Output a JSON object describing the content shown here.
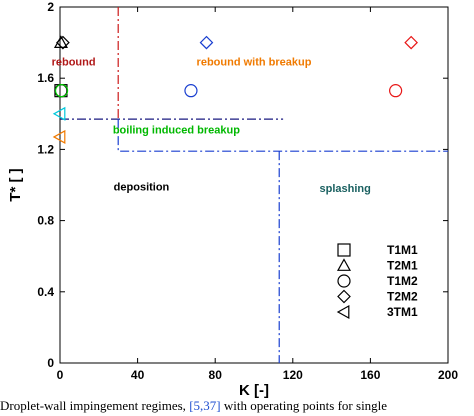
{
  "chart_data": {
    "type": "scatter",
    "xlabel": "K [-]",
    "ylabel": "T* [ ]",
    "xlim": [
      0,
      200
    ],
    "ylim": [
      0,
      2
    ],
    "xticks": [
      0,
      40,
      80,
      120,
      160,
      200
    ],
    "yticks": [
      0,
      0.4,
      0.8,
      1.2,
      1.6,
      2
    ],
    "xtick_labels": [
      "0",
      "40",
      "80",
      "120",
      "160",
      "200"
    ],
    "ytick_labels": [
      "0",
      "0.4",
      "0.8",
      "1.2",
      "1.6",
      "2"
    ],
    "grid": false,
    "legend_position": "bottom-right",
    "series": [
      {
        "name": "T1M1",
        "marker": "square",
        "points": [
          {
            "x": 0.5,
            "y": 1.53,
            "color": "#000000"
          }
        ]
      },
      {
        "name": "T2M1",
        "marker": "triangle",
        "points": [
          {
            "x": 0.5,
            "y": 1.8,
            "color": "#000000"
          }
        ]
      },
      {
        "name": "T1M2",
        "marker": "circle",
        "points": [
          {
            "x": 0.5,
            "y": 1.53,
            "color": "#000000"
          },
          {
            "x": 0.8,
            "y": 1.53,
            "color": "#00cc00"
          },
          {
            "x": 67.5,
            "y": 1.53,
            "color": "#1a3fd0"
          },
          {
            "x": 173,
            "y": 1.53,
            "color": "#e81818"
          }
        ]
      },
      {
        "name": "T2M2",
        "marker": "diamond",
        "points": [
          {
            "x": 1.5,
            "y": 1.8,
            "color": "#000000"
          },
          {
            "x": 75.5,
            "y": 1.8,
            "color": "#1a3fd0"
          },
          {
            "x": 181,
            "y": 1.8,
            "color": "#e81818"
          }
        ]
      },
      {
        "name": "3TM1",
        "marker": "left-triangle",
        "points": [
          {
            "x": 0,
            "y": 1.4,
            "color": "#00c8dc"
          },
          {
            "x": 0,
            "y": 1.27,
            "color": "#f07a00"
          }
        ]
      }
    ],
    "annotations": [
      {
        "text": "rebound",
        "x": 7,
        "y": 1.67,
        "color": "#b01818"
      },
      {
        "text": "rebound with breakup",
        "x": 100,
        "y": 1.67,
        "color": "#f07a00"
      },
      {
        "text": "boiling induced breakup",
        "x": 60,
        "y": 1.29,
        "color": "#00b800"
      },
      {
        "text": "deposition",
        "x": 42,
        "y": 0.97,
        "color": "#000000"
      },
      {
        "text": "splashing",
        "x": 147,
        "y": 0.96,
        "color": "#1a6060"
      }
    ],
    "boundaries": [
      {
        "color": "#cc1a1a",
        "points": [
          [
            30,
            2
          ],
          [
            30,
            1.37
          ]
        ]
      },
      {
        "color": "#1a1a80",
        "points": [
          [
            0,
            1.37
          ],
          [
            115,
            1.37
          ]
        ]
      },
      {
        "color": "#1a3fd0",
        "points": [
          [
            30,
            1.37
          ],
          [
            30,
            1.19
          ],
          [
            200,
            1.19
          ]
        ]
      },
      {
        "color": "#1a3fd0",
        "points": [
          [
            113,
            1.19
          ],
          [
            113,
            0
          ]
        ]
      }
    ]
  },
  "caption": {
    "before": "Droplet-wall impingement regimes, ",
    "ref": "[5,37]",
    "after": " with operating points for single"
  }
}
